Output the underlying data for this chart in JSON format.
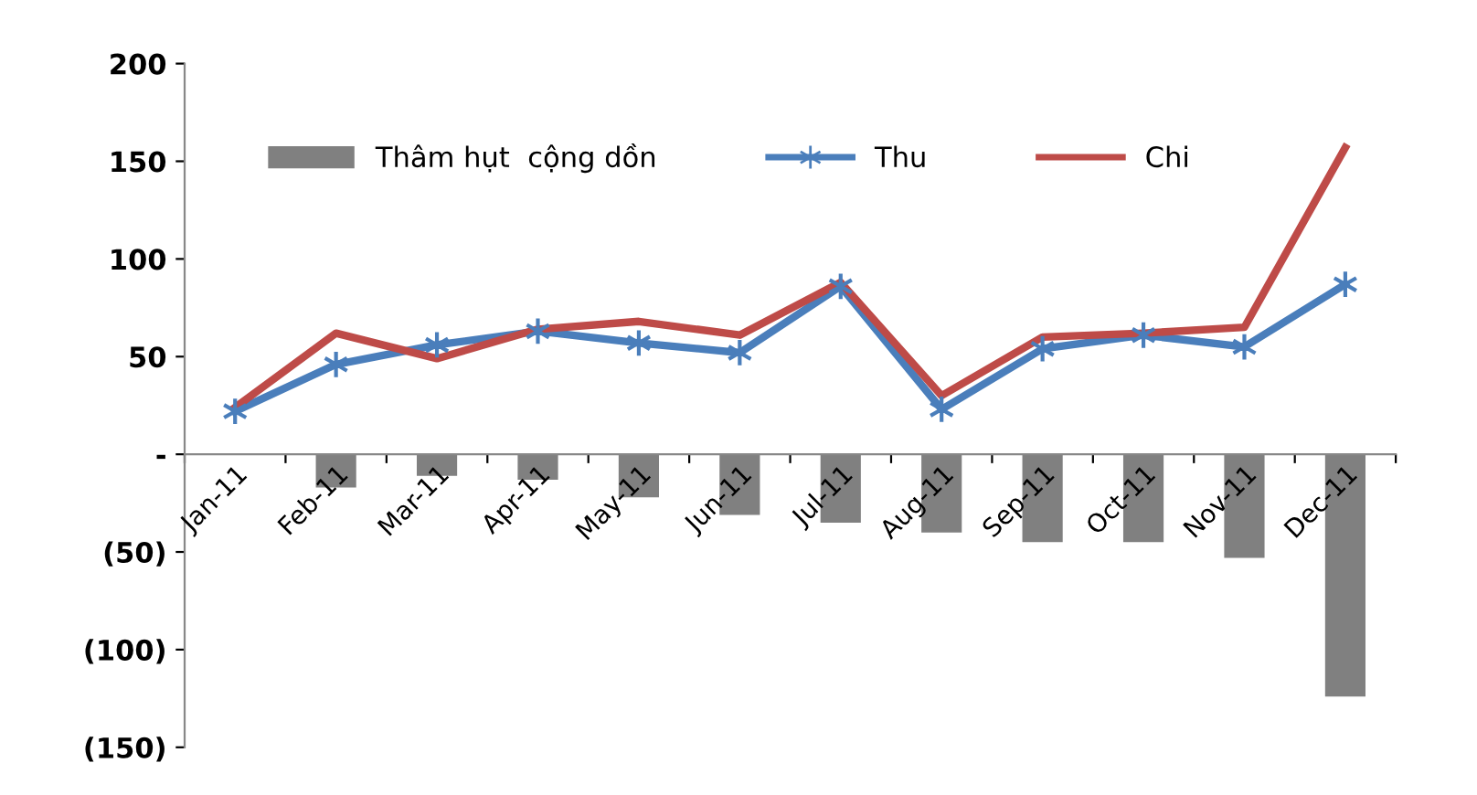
{
  "chart_data": {
    "type": "bar",
    "categories": [
      "Jan-11",
      "Feb-11",
      "Mar-11",
      "Apr-11",
      "May-11",
      "Jun-11",
      "Jul-11",
      "Aug-11",
      "Sep-11",
      "Oct-11",
      "Nov-11",
      "Dec-11"
    ],
    "series": [
      {
        "name": "Thâm hụt  cộng dồn",
        "color": "#808080",
        "values": [
          0,
          -17,
          -11,
          -13,
          -22,
          -31,
          -35,
          -40,
          -45,
          -45,
          -53,
          -124
        ]
      },
      {
        "name": "Thu",
        "type": "line",
        "color": "#4a7ebb",
        "marker": "cross",
        "values": [
          22,
          46,
          56,
          63,
          57,
          52,
          86,
          23,
          54,
          61,
          55,
          87
        ]
      },
      {
        "name": "Chi",
        "type": "line",
        "color": "#be4b48",
        "marker": "none",
        "values": [
          24,
          62,
          49,
          64,
          68,
          61,
          88,
          30,
          60,
          62,
          65,
          157
        ]
      }
    ],
    "ylim": [
      -150,
      200
    ],
    "yticks": [
      200,
      150,
      100,
      50,
      {
        "value": 0,
        "label": "-"
      },
      {
        "value": -50,
        "label": "(50)"
      },
      {
        "value": -100,
        "label": "(100)"
      },
      {
        "value": -150,
        "label": "(150)"
      }
    ],
    "grid": false,
    "legend": "top"
  }
}
